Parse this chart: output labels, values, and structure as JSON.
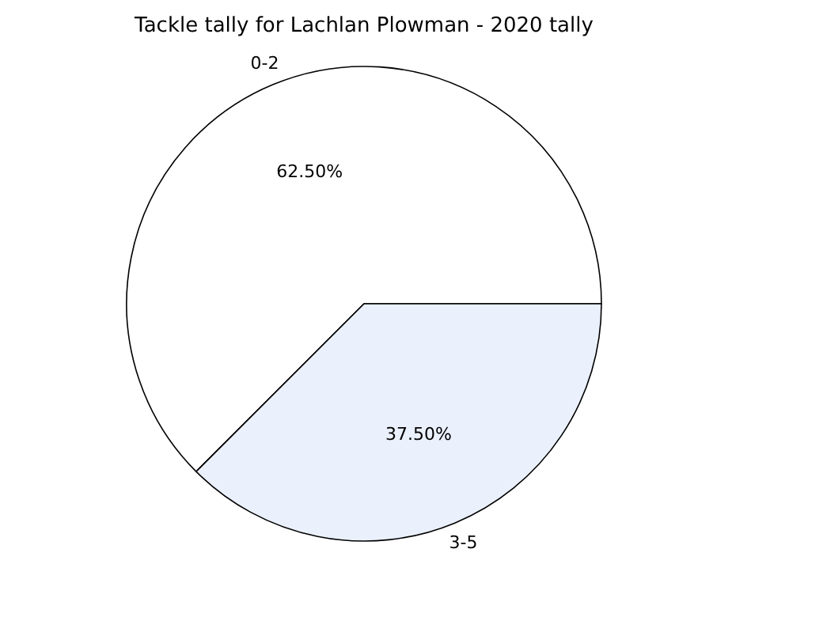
{
  "chart_data": {
    "type": "pie",
    "title": "Tackle tally for Lachlan Plowman - 2020 tally",
    "categories": [
      "0-2",
      "3-5"
    ],
    "values": [
      62.5,
      37.5
    ],
    "value_labels": [
      "62.50%",
      "37.50%"
    ],
    "colors": [
      "#ffffff",
      "#eaf0fc"
    ],
    "legend": false
  }
}
